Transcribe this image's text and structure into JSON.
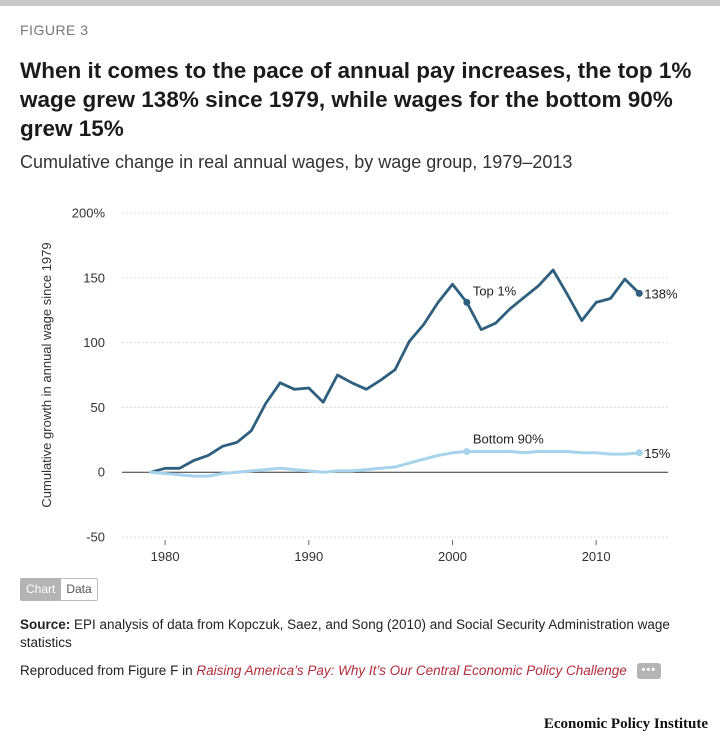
{
  "figure_label": "FIGURE 3",
  "title": "When it comes to the pace of annual pay increases, the top 1% wage grew 138% since 1979, while wages for the bottom 90% grew 15%",
  "subtitle": "Cumulative change in real annual wages, by wage group, 1979–2013",
  "tabs": {
    "chart": "Chart",
    "data": "Data"
  },
  "source": {
    "label": "Source:",
    "text": "EPI analysis of data from Kopczuk, Saez, and Song (2010) and Social Security Administration wage statistics"
  },
  "reproduced": {
    "prefix": "Reproduced from Figure F in",
    "link": "Raising America’s Pay: Why It’s Our Central Economic Policy Challenge",
    "more": "•••"
  },
  "brand": "Economic Policy Institute",
  "colors": {
    "top1": "#2f5f7f",
    "bottom90": "#a8d3ec",
    "grid": "#cfcfcf",
    "zero": "#333333"
  },
  "chart_data": {
    "type": "line",
    "title": "Cumulative change in real annual wages, by wage group, 1979–2013",
    "xlabel": "",
    "ylabel": "Cumulative growth in annual wage since 1979",
    "xlim": [
      1977,
      2015
    ],
    "ylim": [
      -50,
      200
    ],
    "y_ticks": [
      200,
      150,
      100,
      50,
      0,
      -50
    ],
    "y_tick_labels": [
      "200%",
      "150",
      "100",
      "50",
      "0",
      "-50"
    ],
    "x_ticks": [
      1980,
      1990,
      2000,
      2010
    ],
    "x_tick_labels": [
      "1980",
      "1990",
      "2000",
      "2010"
    ],
    "x": [
      1979,
      1980,
      1981,
      1982,
      1983,
      1984,
      1985,
      1986,
      1987,
      1988,
      1989,
      1990,
      1991,
      1992,
      1993,
      1994,
      1995,
      1996,
      1997,
      1998,
      1999,
      2000,
      2001,
      2002,
      2003,
      2004,
      2005,
      2006,
      2007,
      2008,
      2009,
      2010,
      2011,
      2012,
      2013
    ],
    "series": [
      {
        "name": "Top 1%",
        "end_label": "138%",
        "values": [
          0,
          3,
          3,
          9,
          13,
          20,
          23,
          32,
          53,
          69,
          64,
          65,
          54,
          75,
          69,
          64,
          71,
          79,
          101,
          114,
          131,
          145,
          131,
          110,
          115,
          126,
          135,
          144,
          156,
          137,
          117,
          131,
          134,
          149,
          138
        ],
        "marked_index": 22
      },
      {
        "name": "Bottom 90%",
        "end_label": "15%",
        "values": [
          0,
          -1,
          -2,
          -3,
          -3,
          -1,
          0,
          1,
          2,
          3,
          2,
          1,
          0,
          1,
          1,
          2,
          3,
          4,
          7,
          10,
          13,
          15,
          16,
          16,
          16,
          16,
          15,
          16,
          16,
          16,
          15,
          15,
          14,
          14,
          15
        ],
        "marked_index": 22
      }
    ]
  }
}
